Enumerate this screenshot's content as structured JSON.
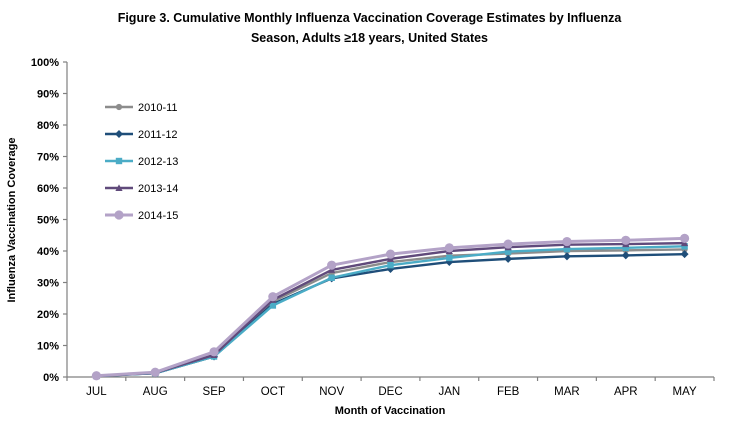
{
  "chart_data": {
    "type": "line",
    "title": {
      "line1": "Figure 3. Cumulative Monthly Influenza Vaccination Coverage Estimates by Influenza",
      "line2": "Season, Adults ≥18 years, United States"
    },
    "xlabel": "Month of Vaccination",
    "ylabel": "Influenza Vaccination Coverage",
    "categories": [
      "JUL",
      "AUG",
      "SEP",
      "OCT",
      "NOV",
      "DEC",
      "JAN",
      "FEB",
      "MAR",
      "APR",
      "MAY"
    ],
    "y_axis": {
      "min": 0,
      "max": 100,
      "step": 10,
      "tick_format": "percent"
    },
    "grid": false,
    "legend_position": "inside-top-left",
    "axis_color": "#808080",
    "text_color": "#000000",
    "series": [
      {
        "name": "2010-11",
        "color": "#8c8c8c",
        "marker": "circle",
        "values": [
          0.4,
          1.2,
          6.5,
          24.0,
          33.0,
          36.5,
          38.5,
          39.2,
          40.0,
          40.2,
          40.5
        ]
      },
      {
        "name": "2011-12",
        "color": "#1f4e79",
        "marker": "diamond",
        "values": [
          0.3,
          1.2,
          6.5,
          23.2,
          31.3,
          34.3,
          36.5,
          37.5,
          38.3,
          38.6,
          39.0
        ]
      },
      {
        "name": "2012-13",
        "color": "#4bacc6",
        "marker": "square",
        "values": [
          0.3,
          1.2,
          6.5,
          22.7,
          31.5,
          35.5,
          37.8,
          39.8,
          40.6,
          41.0,
          41.5
        ]
      },
      {
        "name": "2013-14",
        "color": "#604a7b",
        "marker": "triangle",
        "values": [
          0.3,
          1.3,
          7.0,
          24.5,
          34.0,
          37.5,
          40.0,
          41.2,
          42.0,
          42.2,
          42.5
        ]
      },
      {
        "name": "2014-15",
        "color": "#b3a2c7",
        "marker": "circle-large",
        "values": [
          0.4,
          1.5,
          8.0,
          25.5,
          35.5,
          39.0,
          41.0,
          42.2,
          43.0,
          43.4,
          44.0
        ]
      }
    ]
  }
}
